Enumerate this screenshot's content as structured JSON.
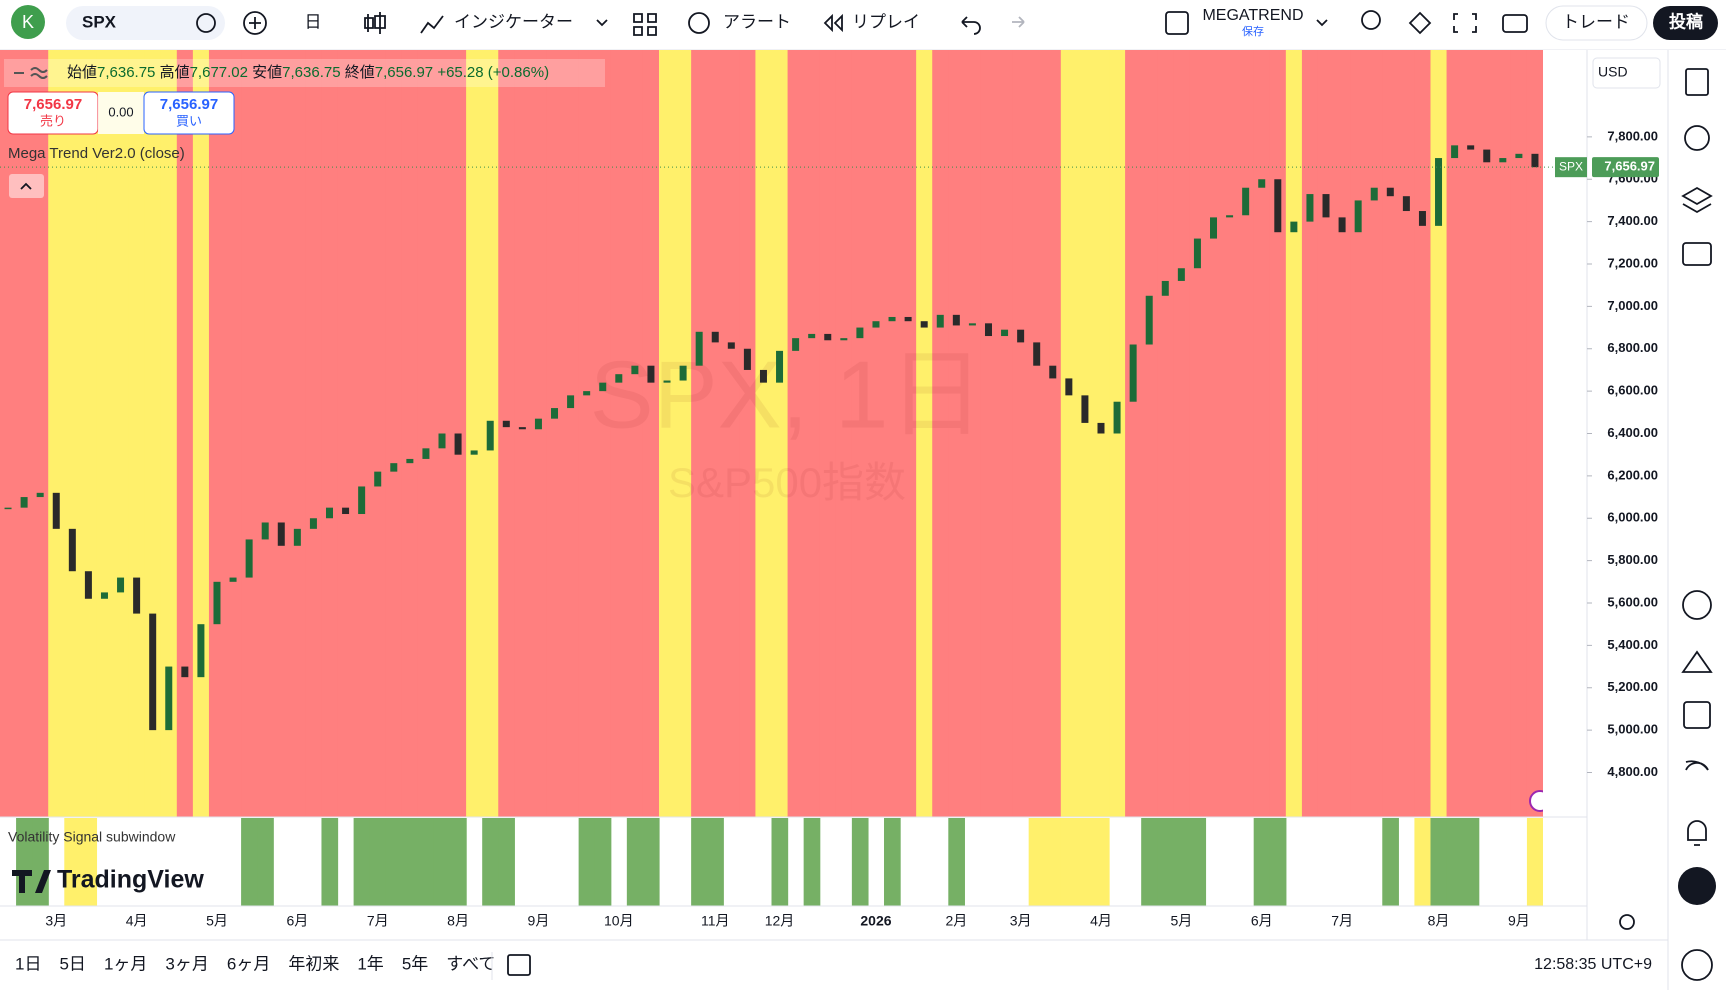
{
  "toolbar": {
    "avatar": "K",
    "symbol": "SPX",
    "interval": "日",
    "indicators": "インジケーター",
    "alert": "アラート",
    "replay": "リプレイ",
    "layout_name": "MEGATREND",
    "layout_status": "保存",
    "trade": "トレード",
    "publish": "投稿"
  },
  "legend": {
    "ohlc": [
      {
        "label": "始値",
        "value": "7,636.75"
      },
      {
        "label": "高値",
        "value": "7,677.02"
      },
      {
        "label": "安値",
        "value": "7,636.75"
      },
      {
        "label": "終値",
        "value": "7,656.97"
      }
    ],
    "change": "+65.28 (+0.86%)",
    "sell_price": "7,656.97",
    "sell": "売り",
    "spread": "0.00",
    "buy_price": "7,656.97",
    "buy": "買い",
    "indicator": "Mega Trend Ver2.0 (close)"
  },
  "watermark": {
    "title": "SPX, 1日",
    "subtitle": "S&P500指数"
  },
  "price_axis": {
    "currency": "USD",
    "symbol_tag": "SPX",
    "last_price_label": "7,656.97"
  },
  "subwindow": {
    "title": "Volatility Signal subwindow",
    "logo": "TradingView"
  },
  "chart_data": {
    "type": "candlestick",
    "categories": [
      null,
      null,
      null,
      "3月",
      null,
      null,
      null,
      null,
      "4月",
      null,
      null,
      null,
      null,
      "5月",
      null,
      null,
      null,
      null,
      "6月",
      null,
      null,
      null,
      null,
      "7月",
      null,
      null,
      null,
      null,
      "8月",
      null,
      null,
      null,
      null,
      "9月",
      null,
      null,
      null,
      null,
      "10月",
      null,
      null,
      null,
      null,
      null,
      "11月",
      null,
      null,
      null,
      "12月",
      null,
      null,
      null,
      null,
      null,
      "2026",
      null,
      null,
      null,
      null,
      "2月",
      null,
      null,
      null,
      "3月",
      null,
      null,
      null,
      null,
      "4月",
      null,
      null,
      null,
      null,
      "5月",
      null,
      null,
      null,
      null,
      "6月",
      null,
      null,
      null,
      null,
      "7月",
      null,
      null,
      null,
      null,
      null,
      "8月",
      null,
      null,
      null,
      null,
      "9月",
      null
    ],
    "values": [
      6050,
      6100,
      6120,
      5950,
      5750,
      5620,
      5650,
      5720,
      5550,
      5000,
      5300,
      5250,
      5500,
      5700,
      5720,
      5900,
      5980,
      5870,
      5950,
      6000,
      6050,
      6020,
      6150,
      6220,
      6260,
      6280,
      6330,
      6400,
      6300,
      6320,
      6460,
      6430,
      6420,
      6470,
      6520,
      6580,
      6600,
      6640,
      6680,
      6720,
      6640,
      6650,
      6720,
      6880,
      6830,
      6800,
      6700,
      6640,
      6790,
      6850,
      6870,
      6840,
      6850,
      6900,
      6930,
      6950,
      6930,
      6900,
      6960,
      6910,
      6920,
      6860,
      6890,
      6830,
      6720,
      6660,
      6580,
      6450,
      6400,
      6550,
      6820,
      7050,
      7120,
      7180,
      7320,
      7420,
      7430,
      7560,
      7600,
      7350,
      7400,
      7530,
      7420,
      7350,
      7500,
      7560,
      7520,
      7450,
      7380,
      7700,
      7760,
      7740,
      7680,
      7700,
      7720,
      7656.97
    ],
    "up_color": "#1d6b38",
    "down_color": "#2a2a2a",
    "band_colors": [
      "#ff7f7f",
      "#ff7f7f",
      "#ff7f7f",
      "#fff06b",
      "#fff06b",
      "#fff06b",
      "#fff06b",
      "#fff06b",
      "#fff06b",
      "#fff06b",
      "#fff06b",
      "#ff7f7f",
      "#fff06b",
      "#ff7f7f",
      "#ff7f7f",
      "#ff7f7f",
      "#ff7f7f",
      "#ff7f7f",
      "#ff7f7f",
      "#ff7f7f",
      "#ff7f7f",
      "#ff7f7f",
      "#ff7f7f",
      "#ff7f7f",
      "#ff7f7f",
      "#ff7f7f",
      "#ff7f7f",
      "#ff7f7f",
      "#ff7f7f",
      "#fff06b",
      "#fff06b",
      "#ff7f7f",
      "#ff7f7f",
      "#ff7f7f",
      "#ff7f7f",
      "#ff7f7f",
      "#ff7f7f",
      "#ff7f7f",
      "#ff7f7f",
      "#ff7f7f",
      "#ff7f7f",
      "#fff06b",
      "#fff06b",
      "#ff7f7f",
      "#ff7f7f",
      "#ff7f7f",
      "#ff7f7f",
      "#fff06b",
      "#fff06b",
      "#ff7f7f",
      "#ff7f7f",
      "#ff7f7f",
      "#ff7f7f",
      "#ff7f7f",
      "#ff7f7f",
      "#ff7f7f",
      "#ff7f7f",
      "#fff06b",
      "#ff7f7f",
      "#ff7f7f",
      "#ff7f7f",
      "#ff7f7f",
      "#ff7f7f",
      "#ff7f7f",
      "#ff7f7f",
      "#ff7f7f",
      "#fff06b",
      "#fff06b",
      "#fff06b",
      "#fff06b",
      "#ff7f7f",
      "#ff7f7f",
      "#ff7f7f",
      "#ff7f7f",
      "#ff7f7f",
      "#ff7f7f",
      "#ff7f7f",
      "#ff7f7f",
      "#ff7f7f",
      "#ff7f7f",
      "#fff06b",
      "#ff7f7f",
      "#ff7f7f",
      "#ff7f7f",
      "#ff7f7f",
      "#ff7f7f",
      "#ff7f7f",
      "#ff7f7f",
      "#ff7f7f",
      "#fff06b",
      "#ff7f7f",
      "#ff7f7f",
      "#ff7f7f",
      "#ff7f7f",
      "#ff7f7f",
      "#ff7f7f"
    ],
    "signal_colors": [
      null,
      "#76b065",
      "#76b065",
      null,
      "#fff06b",
      "#fff06b",
      null,
      null,
      null,
      null,
      null,
      null,
      null,
      null,
      null,
      "#76b065",
      "#76b065",
      null,
      null,
      null,
      "#76b065",
      null,
      "#76b065",
      "#76b065",
      "#76b065",
      "#76b065",
      "#76b065",
      "#76b065",
      "#76b065",
      null,
      "#76b065",
      "#76b065",
      null,
      null,
      null,
      null,
      "#76b065",
      "#76b065",
      null,
      "#76b065",
      "#76b065",
      null,
      null,
      "#76b065",
      "#76b065",
      null,
      null,
      null,
      "#76b065",
      null,
      "#76b065",
      null,
      null,
      "#76b065",
      null,
      "#76b065",
      null,
      null,
      null,
      "#76b065",
      null,
      null,
      null,
      null,
      "#fff06b",
      "#fff06b",
      "#fff06b",
      "#fff06b",
      "#fff06b",
      null,
      null,
      "#76b065",
      "#76b065",
      "#76b065",
      "#76b065",
      null,
      null,
      null,
      "#76b065",
      "#76b065",
      null,
      null,
      null,
      null,
      null,
      null,
      "#76b065",
      null,
      "#fff06b",
      "#76b065",
      "#76b065",
      "#76b065",
      null,
      null,
      null,
      "#fff06b"
    ],
    "ylim": [
      4590,
      8210
    ],
    "yticks": [
      {
        "value": 4800,
        "label": "4,800.00"
      },
      {
        "value": 5000,
        "label": "5,000.00"
      },
      {
        "value": 5200,
        "label": "5,200.00"
      },
      {
        "value": 5400,
        "label": "5,400.00"
      },
      {
        "value": 5600,
        "label": "5,600.00"
      },
      {
        "value": 5800,
        "label": "5,800.00"
      },
      {
        "value": 6000,
        "label": "6,000.00"
      },
      {
        "value": 6200,
        "label": "6,200.00"
      },
      {
        "value": 6400,
        "label": "6,400.00"
      },
      {
        "value": 6600,
        "label": "6,600.00"
      },
      {
        "value": 6800,
        "label": "6,800.00"
      },
      {
        "value": 7000,
        "label": "7,000.00"
      },
      {
        "value": 7200,
        "label": "7,200.00"
      },
      {
        "value": 7400,
        "label": "7,400.00"
      },
      {
        "value": 7600,
        "label": "7,600.00"
      },
      {
        "value": 7800,
        "label": "7,800.00"
      }
    ]
  },
  "bottom_bar": {
    "ranges": [
      "1日",
      "5日",
      "1ヶ月",
      "3ヶ月",
      "6ヶ月",
      "年初来",
      "1年",
      "5年",
      "すべて"
    ],
    "clock": "12:58:35 UTC+9"
  }
}
